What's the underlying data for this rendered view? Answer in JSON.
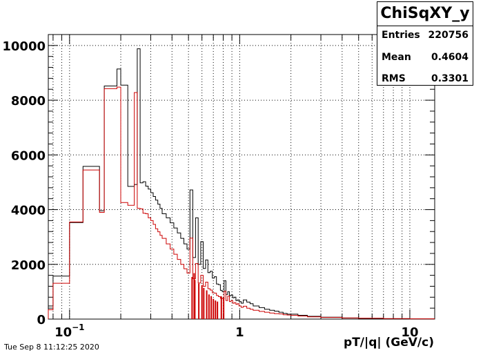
{
  "stats": {
    "title": "ChiSqXY_y",
    "rows": [
      {
        "key": "Entries",
        "value": "220756"
      },
      {
        "key": "Mean",
        "value": "0.4604"
      },
      {
        "key": "RMS",
        "value": "0.3301"
      }
    ]
  },
  "footer_text": "Tue Sep  8 11:12:25 2020",
  "chart_data": {
    "type": "histogram",
    "title": "",
    "xlabel": "pT/|q| (GeV/c)",
    "ylabel": "",
    "x_scale": "log",
    "xlim": [
      0.075,
      14
    ],
    "ylim": [
      0,
      10400
    ],
    "x_tick_labels": [
      {
        "value": 0.1,
        "label": "10",
        "sup": "−1"
      },
      {
        "value": 1,
        "label": "1",
        "sup": ""
      },
      {
        "value": 10,
        "label": "10",
        "sup": ""
      }
    ],
    "y_ticks": [
      0,
      2000,
      4000,
      6000,
      8000,
      10000
    ],
    "grid": true,
    "series": [
      {
        "color": "#000000",
        "edges": [
          0.075,
          0.08,
          0.1,
          0.12,
          0.15,
          0.16,
          0.19,
          0.2,
          0.22,
          0.24,
          0.25,
          0.26,
          0.27,
          0.28,
          0.29,
          0.3,
          0.31,
          0.32,
          0.33,
          0.34,
          0.35,
          0.37,
          0.39,
          0.41,
          0.43,
          0.45,
          0.47,
          0.49,
          0.51,
          0.53,
          0.55,
          0.57,
          0.59,
          0.61,
          0.63,
          0.65,
          0.67,
          0.69,
          0.71,
          0.73,
          0.75,
          0.77,
          0.79,
          0.81,
          0.83,
          0.85,
          0.87,
          0.89,
          0.91,
          0.93,
          0.95,
          0.97,
          0.99,
          1.02,
          1.05,
          1.1,
          1.15,
          1.2,
          1.3,
          1.4,
          1.5,
          1.6,
          1.7,
          1.8,
          1.9,
          2,
          2.2,
          2.5,
          3,
          4,
          5,
          7,
          10,
          14
        ],
        "values": [
          480,
          1570,
          3530,
          5580,
          3960,
          8520,
          9140,
          8550,
          4850,
          4920,
          9880,
          4980,
          5020,
          4860,
          4750,
          4620,
          4480,
          4350,
          4200,
          4050,
          3850,
          3700,
          3520,
          3330,
          3150,
          2950,
          2750,
          2560,
          4720,
          2250,
          3700,
          2000,
          2830,
          1850,
          2160,
          1700,
          1750,
          1500,
          1550,
          1280,
          1260,
          1050,
          1000,
          1400,
          900,
          1000,
          850,
          880,
          780,
          800,
          680,
          700,
          640,
          580,
          700,
          620,
          560,
          480,
          420,
          360,
          320,
          290,
          250,
          210,
          180,
          180,
          140,
          100,
          70,
          40,
          20,
          10,
          5
        ],
        "spikes": []
      },
      {
        "color": "#cc0000",
        "edges": [
          0.075,
          0.08,
          0.1,
          0.12,
          0.15,
          0.16,
          0.19,
          0.2,
          0.22,
          0.24,
          0.25,
          0.26,
          0.27,
          0.28,
          0.29,
          0.3,
          0.31,
          0.32,
          0.33,
          0.34,
          0.35,
          0.37,
          0.39,
          0.41,
          0.43,
          0.45,
          0.47,
          0.49,
          0.51,
          0.53,
          0.55,
          0.57,
          0.59,
          0.61,
          0.63,
          0.65,
          0.67,
          0.69,
          0.71,
          0.73,
          0.75,
          0.77,
          0.79,
          0.81,
          0.83,
          0.85,
          0.87,
          0.89,
          0.91,
          0.93,
          0.95,
          0.97,
          0.99,
          1.02,
          1.05,
          1.1,
          1.15,
          1.2,
          1.3,
          1.4,
          1.5,
          1.6,
          1.7,
          1.8,
          1.9,
          2,
          2.2,
          2.5,
          3,
          4,
          5,
          7,
          10,
          14
        ],
        "values": [
          340,
          1310,
          3550,
          5450,
          3900,
          8420,
          8480,
          4260,
          4160,
          8280,
          4050,
          4030,
          3870,
          3850,
          3700,
          3600,
          3460,
          3300,
          3190,
          3060,
          2950,
          2750,
          2560,
          2370,
          2180,
          2000,
          1840,
          1680,
          2960,
          1480,
          2030,
          1320,
          1600,
          1200,
          1350,
          1110,
          1060,
          960,
          950,
          860,
          820,
          760,
          750,
          1020,
          680,
          840,
          640,
          680,
          580,
          600,
          540,
          560,
          480,
          430,
          470,
          400,
          360,
          320,
          280,
          250,
          220,
          200,
          190,
          160,
          150,
          140,
          110,
          80,
          60,
          40,
          30,
          20,
          10
        ],
        "spikes": [
          {
            "x": 0.525,
            "value": 1540
          },
          {
            "x": 0.54,
            "value": 1680
          },
          {
            "x": 0.545,
            "value": 1430
          },
          {
            "x": 0.575,
            "value": 1300
          },
          {
            "x": 0.6,
            "value": 1240
          },
          {
            "x": 0.615,
            "value": 1140
          },
          {
            "x": 0.64,
            "value": 1050
          },
          {
            "x": 0.66,
            "value": 900
          },
          {
            "x": 0.68,
            "value": 840
          },
          {
            "x": 0.7,
            "value": 740
          },
          {
            "x": 0.72,
            "value": 680
          },
          {
            "x": 0.74,
            "value": 640
          },
          {
            "x": 0.78,
            "value": 830
          },
          {
            "x": 0.805,
            "value": 780
          }
        ]
      }
    ]
  }
}
